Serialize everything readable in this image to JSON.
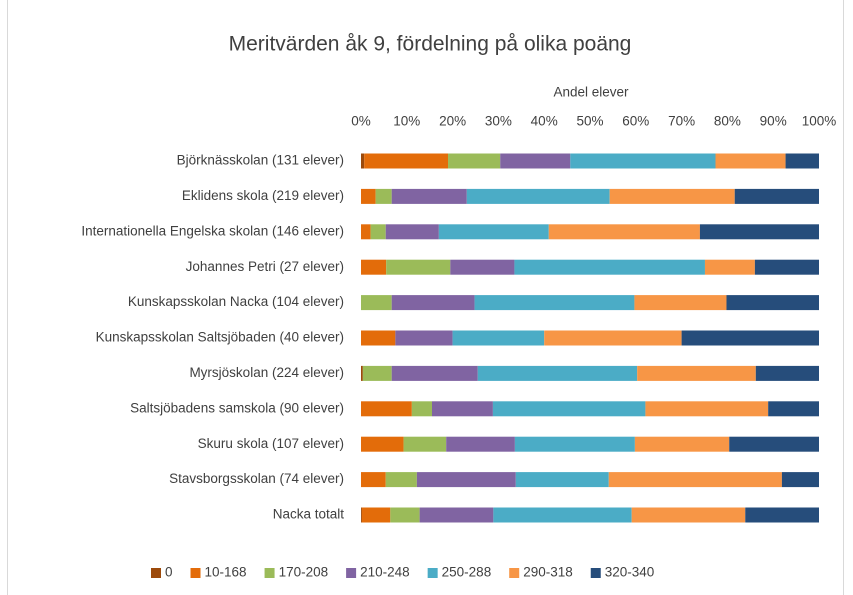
{
  "chart_data": {
    "type": "stacked-barh",
    "title": "Meritvärden åk 9, fördelning på olika poäng",
    "xlabel": "Andel elever",
    "categories": [
      "Björknässkolan (131 elever)",
      "Eklidens skola (219 elever)",
      "Internationella Engelska skolan (146 elever)",
      "Johannes Petri (27 elever)",
      "Kunskapsskolan Nacka (104 elever)",
      "Kunskapsskolan Saltsjöbaden (40 elever)",
      "Myrsjöskolan (224 elever)",
      "Saltsjöbadens samskola (90 elever)",
      "Skuru skola (107 elever)",
      "Stavsborgsskolan (74 elever)",
      "Nacka totalt"
    ],
    "series": [
      {
        "name": "0",
        "color": "#9c4a0b",
        "values": [
          0.7,
          0,
          0,
          0,
          0,
          0,
          0.4,
          0,
          0,
          0,
          0.2
        ]
      },
      {
        "name": "10-168",
        "color": "#e36c0a",
        "values": [
          18.3,
          3.2,
          2.1,
          5.5,
          0,
          7.5,
          0,
          11.1,
          9.3,
          5.4,
          6.2
        ]
      },
      {
        "name": "170-208",
        "color": "#9bbb59",
        "values": [
          11.4,
          3.5,
          3.3,
          14,
          6.7,
          0,
          6.3,
          4.4,
          9.3,
          6.8,
          6.4
        ]
      },
      {
        "name": "210-248",
        "color": "#8064a2",
        "values": [
          15.3,
          16.4,
          11.6,
          14,
          18.1,
          12.5,
          18.8,
          13.3,
          15,
          21.6,
          16.1
        ]
      },
      {
        "name": "250-288",
        "color": "#4bacc6",
        "values": [
          31.7,
          31.2,
          24,
          41.6,
          34.9,
          20,
          34.8,
          33.3,
          26.2,
          20.3,
          30.2
        ]
      },
      {
        "name": "290-318",
        "color": "#f79646",
        "values": [
          15.3,
          27.3,
          33,
          10.9,
          20.1,
          30,
          25.9,
          26.8,
          20.6,
          37.8,
          24.8
        ]
      },
      {
        "name": "320-340",
        "color": "#264d7b",
        "values": [
          7.3,
          18.4,
          26,
          14,
          20.2,
          30,
          13.8,
          11.1,
          19.6,
          8.1,
          16.1
        ]
      }
    ],
    "xlim": [
      0,
      100
    ],
    "xticks": [
      {
        "value": 0,
        "label": "0%"
      },
      {
        "value": 10,
        "label": "10%"
      },
      {
        "value": 20,
        "label": "20%"
      },
      {
        "value": 30,
        "label": "30%"
      },
      {
        "value": 40,
        "label": "40%"
      },
      {
        "value": 50,
        "label": "50%"
      },
      {
        "value": 60,
        "label": "60%"
      },
      {
        "value": 70,
        "label": "70%"
      },
      {
        "value": 80,
        "label": "80%"
      },
      {
        "value": 90,
        "label": "90%"
      },
      {
        "value": 100,
        "label": "100%"
      }
    ],
    "legend": "bottom"
  }
}
